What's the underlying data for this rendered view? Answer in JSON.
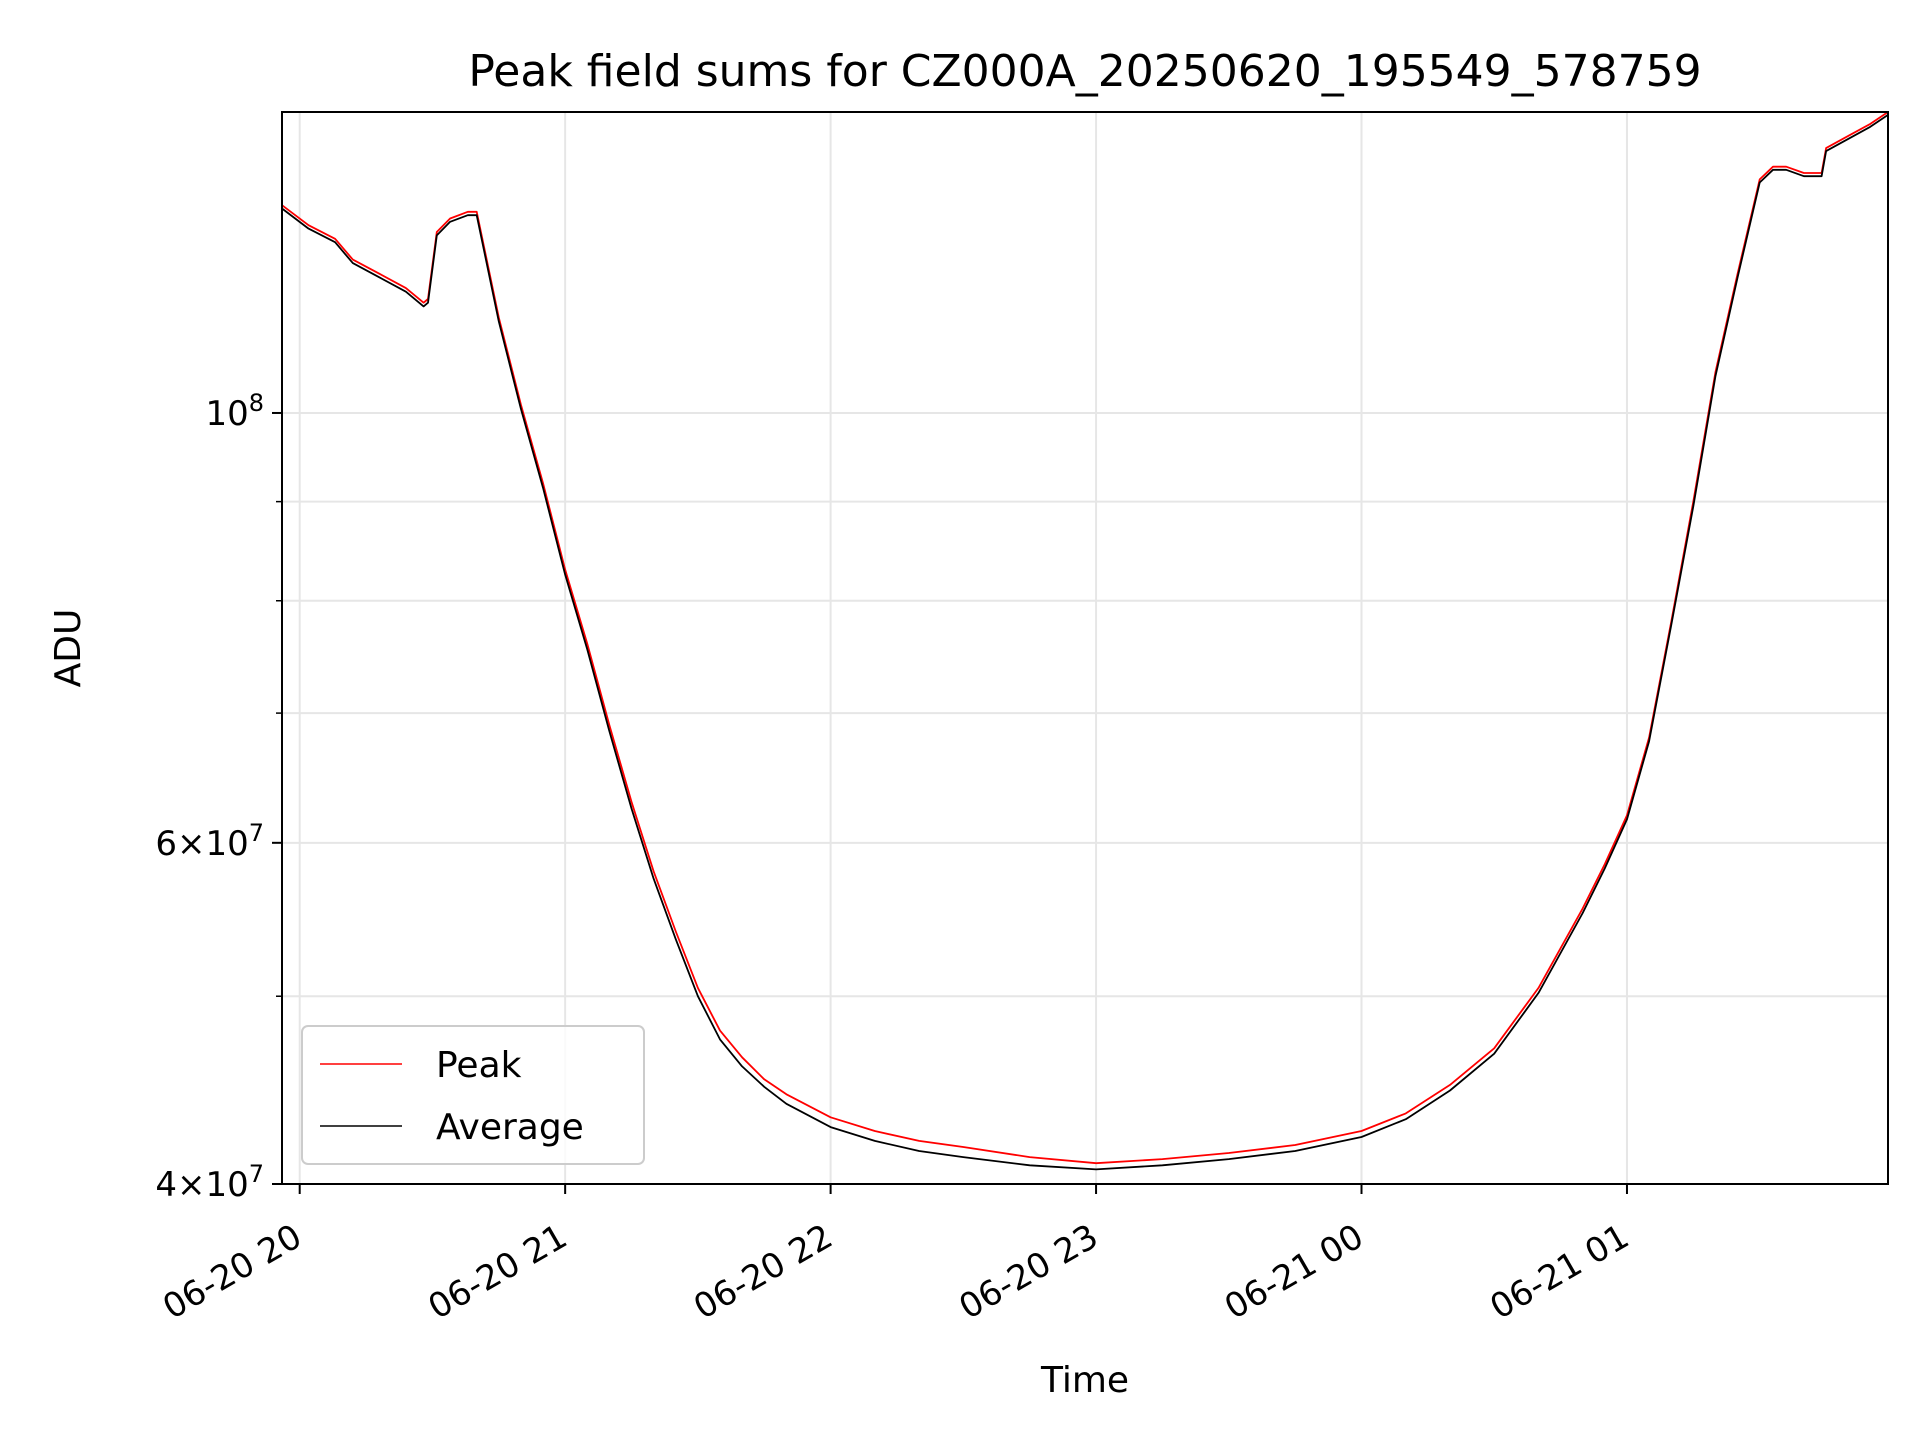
{
  "chart_data": {
    "type": "line",
    "title": "Peak field sums for CZ000A_20250620_195549_578759",
    "xlabel": "Time",
    "ylabel": "ADU",
    "y_scale": "log",
    "ylim": [
      40000000,
      143000000
    ],
    "xlim": [
      "2025-06-20T19:56",
      "2025-06-21T01:59"
    ],
    "x_ticks": [
      {
        "value": "2025-06-20T20:00",
        "label": "06-20 20"
      },
      {
        "value": "2025-06-20T21:00",
        "label": "06-20 21"
      },
      {
        "value": "2025-06-20T22:00",
        "label": "06-20 22"
      },
      {
        "value": "2025-06-20T23:00",
        "label": "06-20 23"
      },
      {
        "value": "2025-06-21T00:00",
        "label": "06-21 00"
      },
      {
        "value": "2025-06-21T01:00",
        "label": "06-21 01"
      }
    ],
    "y_major_ticks": [
      {
        "value": 40000000,
        "mantissa": "4",
        "exponent": "7"
      },
      {
        "value": 60000000,
        "mantissa": "6",
        "exponent": "7"
      },
      {
        "value": 100000000,
        "mantissa": "",
        "exponent": "8"
      }
    ],
    "y_minor_ticks": [
      50000000,
      70000000,
      80000000,
      90000000
    ],
    "grid": true,
    "legend_position": "lower-left",
    "series": [
      {
        "name": "Peak",
        "color": "#ff0000",
        "x": [
          "2025-06-20T19:56",
          "2025-06-20T20:02",
          "2025-06-20T20:08",
          "2025-06-20T20:12",
          "2025-06-20T20:18",
          "2025-06-20T20:24",
          "2025-06-20T20:28",
          "2025-06-20T20:29",
          "2025-06-20T20:31",
          "2025-06-20T20:34",
          "2025-06-20T20:38",
          "2025-06-20T20:40",
          "2025-06-20T20:45",
          "2025-06-20T20:50",
          "2025-06-20T20:55",
          "2025-06-20T21:00",
          "2025-06-20T21:05",
          "2025-06-20T21:10",
          "2025-06-20T21:15",
          "2025-06-20T21:20",
          "2025-06-20T21:25",
          "2025-06-20T21:30",
          "2025-06-20T21:35",
          "2025-06-20T21:40",
          "2025-06-20T21:45",
          "2025-06-20T21:50",
          "2025-06-20T22:00",
          "2025-06-20T22:10",
          "2025-06-20T22:20",
          "2025-06-20T22:30",
          "2025-06-20T22:45",
          "2025-06-20T23:00",
          "2025-06-20T23:15",
          "2025-06-20T23:30",
          "2025-06-20T23:45",
          "2025-06-21T00:00",
          "2025-06-21T00:10",
          "2025-06-21T00:20",
          "2025-06-21T00:30",
          "2025-06-21T00:40",
          "2025-06-21T00:50",
          "2025-06-21T00:55",
          "2025-06-21T01:00",
          "2025-06-21T01:05",
          "2025-06-21T01:10",
          "2025-06-21T01:15",
          "2025-06-21T01:20",
          "2025-06-21T01:25",
          "2025-06-21T01:30",
          "2025-06-21T01:33",
          "2025-06-21T01:36",
          "2025-06-21T01:40",
          "2025-06-21T01:44",
          "2025-06-21T01:45",
          "2025-06-21T01:50",
          "2025-06-21T01:55",
          "2025-06-21T01:59"
        ],
        "y": [
          128000000,
          125000000,
          123000000,
          120000000,
          118000000,
          116000000,
          114000000,
          114500000,
          124000000,
          126000000,
          127000000,
          127000000,
          112000000,
          101000000,
          92000000,
          83000000,
          76000000,
          69000000,
          63000000,
          58000000,
          54000000,
          50500000,
          48000000,
          46500000,
          45300000,
          44500000,
          43300000,
          42600000,
          42100000,
          41800000,
          41300000,
          41000000,
          41200000,
          41500000,
          41900000,
          42600000,
          43500000,
          45000000,
          47000000,
          50500000,
          55500000,
          58500000,
          62000000,
          68000000,
          78000000,
          90000000,
          105000000,
          118000000,
          132000000,
          134000000,
          134000000,
          133000000,
          133000000,
          137000000,
          139000000,
          141000000,
          143000000
        ]
      },
      {
        "name": "Average",
        "color": "#000000",
        "x": [
          "2025-06-20T19:56",
          "2025-06-20T20:02",
          "2025-06-20T20:08",
          "2025-06-20T20:12",
          "2025-06-20T20:18",
          "2025-06-20T20:24",
          "2025-06-20T20:28",
          "2025-06-20T20:29",
          "2025-06-20T20:31",
          "2025-06-20T20:34",
          "2025-06-20T20:38",
          "2025-06-20T20:40",
          "2025-06-20T20:45",
          "2025-06-20T20:50",
          "2025-06-20T20:55",
          "2025-06-20T21:00",
          "2025-06-20T21:05",
          "2025-06-20T21:10",
          "2025-06-20T21:15",
          "2025-06-20T21:20",
          "2025-06-20T21:25",
          "2025-06-20T21:30",
          "2025-06-20T21:35",
          "2025-06-20T21:40",
          "2025-06-20T21:45",
          "2025-06-20T21:50",
          "2025-06-20T22:00",
          "2025-06-20T22:10",
          "2025-06-20T22:20",
          "2025-06-20T22:30",
          "2025-06-20T22:45",
          "2025-06-20T23:00",
          "2025-06-20T23:15",
          "2025-06-20T23:30",
          "2025-06-20T23:45",
          "2025-06-21T00:00",
          "2025-06-21T00:10",
          "2025-06-21T00:20",
          "2025-06-21T00:30",
          "2025-06-21T00:40",
          "2025-06-21T00:50",
          "2025-06-21T00:55",
          "2025-06-21T01:00",
          "2025-06-21T01:05",
          "2025-06-21T01:10",
          "2025-06-21T01:15",
          "2025-06-21T01:20",
          "2025-06-21T01:25",
          "2025-06-21T01:30",
          "2025-06-21T01:33",
          "2025-06-21T01:36",
          "2025-06-21T01:40",
          "2025-06-21T01:44",
          "2025-06-21T01:45",
          "2025-06-21T01:50",
          "2025-06-21T01:55",
          "2025-06-21T01:59"
        ],
        "y": [
          127500000,
          124500000,
          122500000,
          119500000,
          117500000,
          115500000,
          113500000,
          114000000,
          123500000,
          125500000,
          126500000,
          126500000,
          111500000,
          100500000,
          91500000,
          82500000,
          75500000,
          68500000,
          62500000,
          57500000,
          53500000,
          50000000,
          47500000,
          46000000,
          44900000,
          44000000,
          42800000,
          42100000,
          41600000,
          41300000,
          40900000,
          40700000,
          40900000,
          41200000,
          41600000,
          42300000,
          43200000,
          44700000,
          46700000,
          50200000,
          55200000,
          58200000,
          61700000,
          67700000,
          77700000,
          89500000,
          104500000,
          117500000,
          131500000,
          133500000,
          133500000,
          132500000,
          132500000,
          136500000,
          138500000,
          140500000,
          142500000
        ]
      }
    ]
  }
}
